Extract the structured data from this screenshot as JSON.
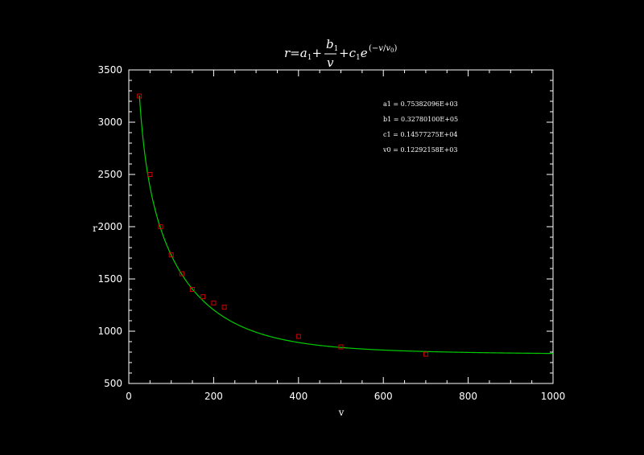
{
  "chart_data": {
    "type": "scatter",
    "title": {
      "r": "r",
      "eq": "=",
      "a": "a",
      "sub1": "1",
      "plus": "+",
      "b": "b",
      "v": "v",
      "c": "c",
      "e": "e",
      "exp_open": "(−",
      "exp_v": "v",
      "exp_slash": "/",
      "exp_close": ")",
      "sub0": "0"
    },
    "xlabel": "v",
    "ylabel": "r",
    "xlim": [
      0,
      1000
    ],
    "ylim": [
      500,
      3500
    ],
    "xticks": [
      "0",
      "200",
      "400",
      "600",
      "800",
      "1000"
    ],
    "yticks": [
      "500",
      "1000",
      "1500",
      "2000",
      "2500",
      "3000",
      "3500"
    ],
    "grid": false,
    "annotations": [
      "a1 = 0.75382096E+03",
      "b1 = 0.32780100E+05",
      "c1 = 0.14577275E+04",
      "v0 = 0.12292158E+03"
    ],
    "parameters": {
      "a1": 753.82096,
      "b1": 32780.1,
      "c1": 1457.7275,
      "v0": 122.92158
    },
    "series": [
      {
        "kind": "points",
        "color": "#cc0000",
        "x": [
          25,
          50,
          75,
          100,
          125,
          150,
          175,
          200,
          225,
          400,
          500,
          700
        ],
        "y": [
          3250,
          2500,
          2000,
          1730,
          1550,
          1400,
          1330,
          1270,
          1230,
          950,
          850,
          780
        ]
      },
      {
        "kind": "fit-curve",
        "color": "#00cc00",
        "x_range": [
          25,
          1000
        ]
      }
    ]
  }
}
